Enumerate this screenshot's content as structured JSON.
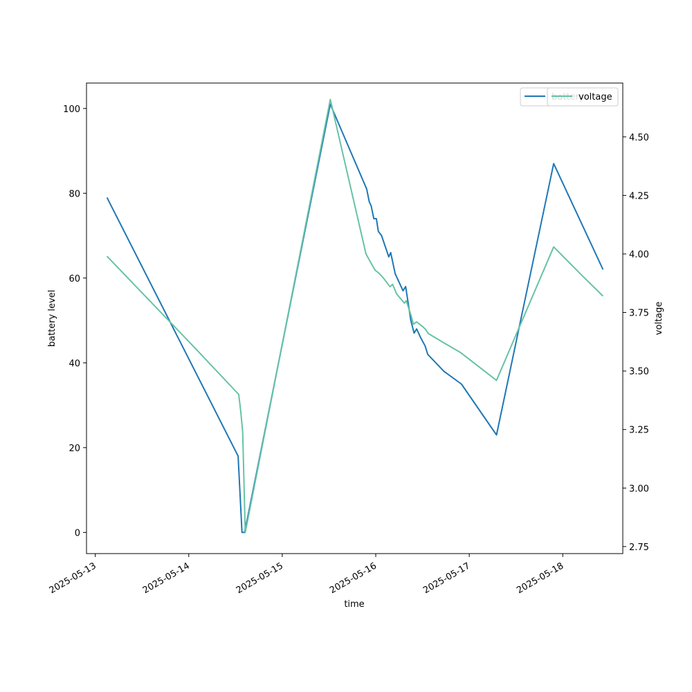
{
  "chart_data": {
    "type": "line",
    "xlabel": "time",
    "ylabel": "battery level",
    "y2label": "voltage",
    "xlim": [
      "2025-05-12 21:45",
      "2025-05-18 15:25"
    ],
    "ylim": [
      -5,
      106
    ],
    "y2lim": [
      2.72,
      4.73
    ],
    "xticks": [
      "2025-05-13",
      "2025-05-14",
      "2025-05-15",
      "2025-05-16",
      "2025-05-17",
      "2025-05-18"
    ],
    "yticks": [
      0,
      20,
      40,
      60,
      80,
      100
    ],
    "y2ticks": [
      "2.75",
      "3.00",
      "3.25",
      "3.50",
      "3.75",
      "4.00",
      "4.25",
      "4.50"
    ],
    "legend_position": "top-right",
    "grid": false,
    "series": [
      {
        "name": "battery",
        "axis": "left",
        "color": "#1f77b4",
        "points": [
          [
            "2025-05-13 03:00",
            79
          ],
          [
            "2025-05-14 12:40",
            18
          ],
          [
            "2025-05-14 13:40",
            0
          ],
          [
            "2025-05-14 14:20",
            0
          ],
          [
            "2025-05-15 12:20",
            101
          ],
          [
            "2025-05-15 21:40",
            81
          ],
          [
            "2025-05-15 22:20",
            78
          ],
          [
            "2025-05-15 22:50",
            77
          ],
          [
            "2025-05-15 23:30",
            74
          ],
          [
            "2025-05-16 00:10",
            74
          ],
          [
            "2025-05-16 00:40",
            71
          ],
          [
            "2025-05-16 01:30",
            70
          ],
          [
            "2025-05-16 03:20",
            65
          ],
          [
            "2025-05-16 03:50",
            66
          ],
          [
            "2025-05-16 05:00",
            61
          ],
          [
            "2025-05-16 06:30",
            58
          ],
          [
            "2025-05-16 07:00",
            57
          ],
          [
            "2025-05-16 07:40",
            58
          ],
          [
            "2025-05-16 09:00",
            50
          ],
          [
            "2025-05-16 09:50",
            47
          ],
          [
            "2025-05-16 10:30",
            48
          ],
          [
            "2025-05-16 11:30",
            46
          ],
          [
            "2025-05-16 12:40",
            44
          ],
          [
            "2025-05-16 13:20",
            42
          ],
          [
            "2025-05-16 17:30",
            38
          ],
          [
            "2025-05-16 22:00",
            35
          ],
          [
            "2025-05-17 07:00",
            23
          ],
          [
            "2025-05-17 21:40",
            87
          ],
          [
            "2025-05-18 10:20",
            62
          ]
        ]
      },
      {
        "name": "voltage",
        "axis": "right",
        "color": "#66c2a5",
        "points": [
          [
            "2025-05-13 03:00",
            3.99
          ],
          [
            "2025-05-14 01:30",
            3.6
          ],
          [
            "2025-05-14 12:50",
            3.4
          ],
          [
            "2025-05-14 13:20",
            3.33
          ],
          [
            "2025-05-14 13:50",
            3.24
          ],
          [
            "2025-05-14 14:30",
            2.81
          ],
          [
            "2025-05-15 12:20",
            4.66
          ],
          [
            "2025-05-15 21:30",
            4.0
          ],
          [
            "2025-05-15 22:30",
            3.97
          ],
          [
            "2025-05-15 23:50",
            3.93
          ],
          [
            "2025-05-16 00:40",
            3.92
          ],
          [
            "2025-05-16 01:50",
            3.9
          ],
          [
            "2025-05-16 03:40",
            3.86
          ],
          [
            "2025-05-16 04:20",
            3.87
          ],
          [
            "2025-05-16 05:20",
            3.83
          ],
          [
            "2025-05-16 07:20",
            3.79
          ],
          [
            "2025-05-16 07:50",
            3.8
          ],
          [
            "2025-05-16 09:00",
            3.74
          ],
          [
            "2025-05-16 09:40",
            3.7
          ],
          [
            "2025-05-16 10:30",
            3.71
          ],
          [
            "2025-05-16 12:00",
            3.69
          ],
          [
            "2025-05-16 12:40",
            3.68
          ],
          [
            "2025-05-16 13:30",
            3.66
          ],
          [
            "2025-05-16 17:30",
            3.62
          ],
          [
            "2025-05-16 21:40",
            3.58
          ],
          [
            "2025-05-17 07:00",
            3.46
          ],
          [
            "2025-05-17 21:40",
            4.03
          ],
          [
            "2025-05-18 04:50",
            3.91
          ],
          [
            "2025-05-18 10:20",
            3.82
          ]
        ]
      }
    ]
  }
}
